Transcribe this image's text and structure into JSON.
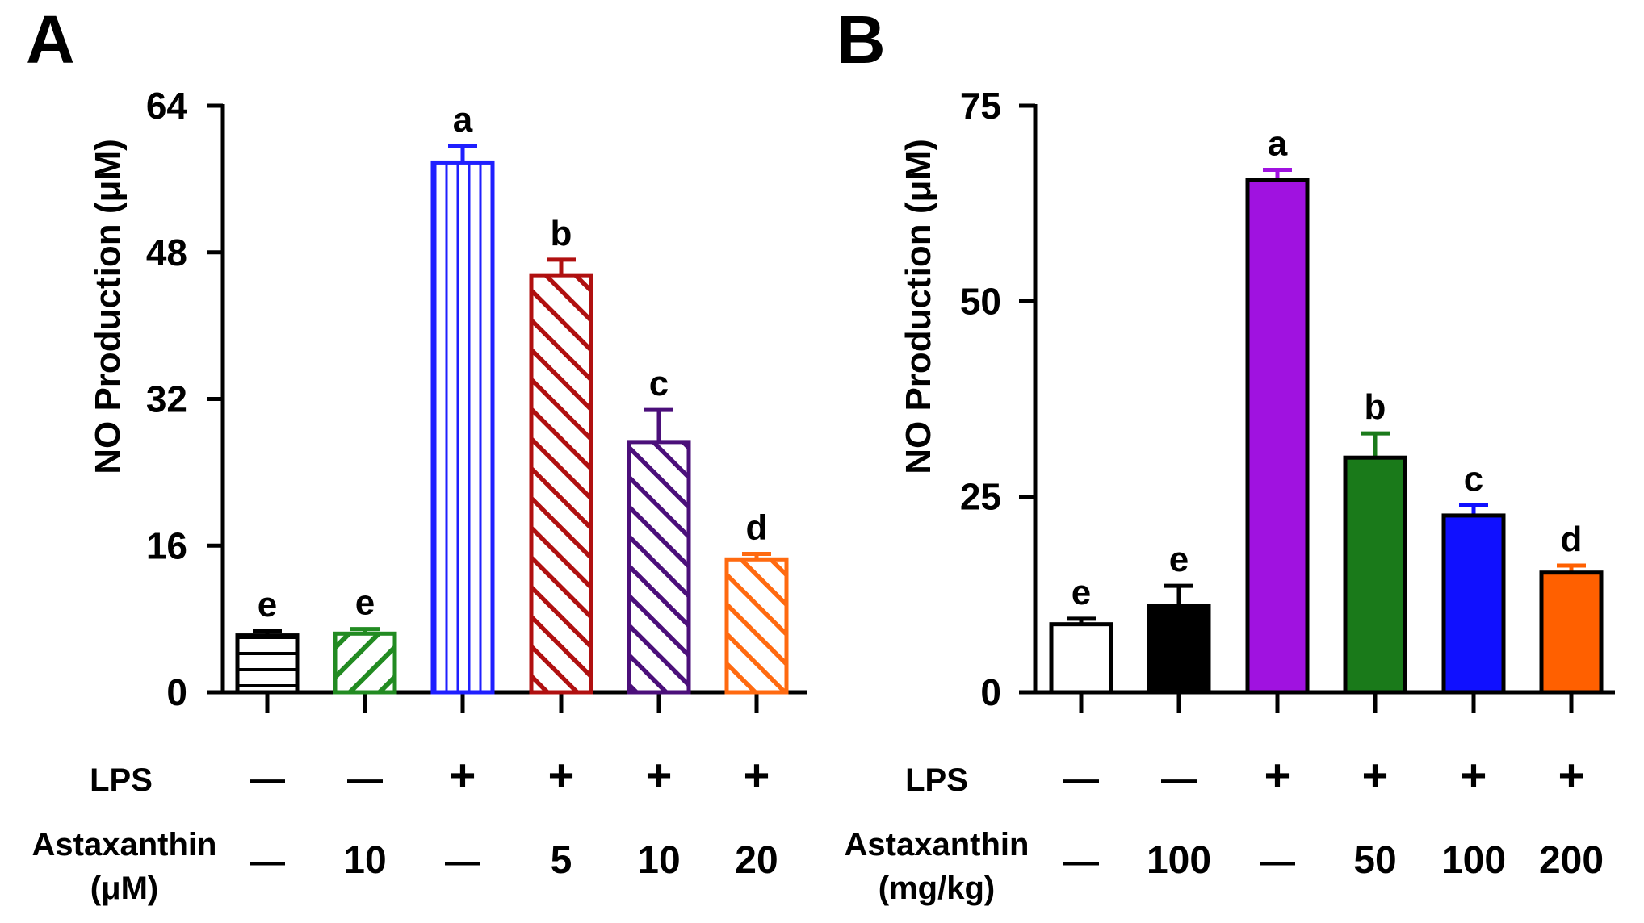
{
  "chart_data": [
    {
      "type": "bar",
      "panel_label": "A",
      "ylabel": "NO Production (μM)",
      "ylim": [
        0,
        64
      ],
      "yticks": [
        "0",
        "16",
        "32",
        "48",
        "64"
      ],
      "bars": [
        {
          "value": 6.2,
          "error": 0.5,
          "letter": "e",
          "lps": "—",
          "dose": "—",
          "color": "#000000",
          "pattern": "horizontal"
        },
        {
          "value": 6.4,
          "error": 0.5,
          "letter": "e",
          "lps": "—",
          "dose": "10",
          "color": "#228b22",
          "pattern": "diag-up"
        },
        {
          "value": 57.8,
          "error": 1.8,
          "letter": "a",
          "lps": "+",
          "dose": "—",
          "color": "#1f1fff",
          "pattern": "vertical"
        },
        {
          "value": 45.5,
          "error": 1.7,
          "letter": "b",
          "lps": "+",
          "dose": "5",
          "color": "#b01010",
          "pattern": "diag-down"
        },
        {
          "value": 27.3,
          "error": 3.5,
          "letter": "c",
          "lps": "+",
          "dose": "10",
          "color": "#4b0f7a",
          "pattern": "diag-down"
        },
        {
          "value": 14.5,
          "error": 0.6,
          "letter": "d",
          "lps": "+",
          "dose": "20",
          "color": "#ff6a10",
          "pattern": "diag-down"
        }
      ],
      "row_label_lps": "LPS",
      "row_label_dose_line1": "Astaxanthin",
      "row_label_dose_line2": "(μM)"
    },
    {
      "type": "bar",
      "panel_label": "B",
      "ylabel": "NO Production (μM)",
      "ylim": [
        0,
        75
      ],
      "yticks": [
        "0",
        "25",
        "50",
        "75"
      ],
      "bars": [
        {
          "value": 8.7,
          "error": 0.7,
          "letter": "e",
          "lps": "—",
          "dose": "—",
          "color": "#ffffff"
        },
        {
          "value": 11.0,
          "error": 2.6,
          "letter": "e",
          "lps": "—",
          "dose": "100",
          "color": "#000000"
        },
        {
          "value": 65.5,
          "error": 1.3,
          "letter": "a",
          "lps": "+",
          "dose": "—",
          "color": "#a012e0"
        },
        {
          "value": 30.0,
          "error": 3.1,
          "letter": "b",
          "lps": "+",
          "dose": "50",
          "color": "#1a7a1a"
        },
        {
          "value": 22.6,
          "error": 1.3,
          "letter": "c",
          "lps": "+",
          "dose": "100",
          "color": "#1010ff"
        },
        {
          "value": 15.3,
          "error": 0.9,
          "letter": "d",
          "lps": "+",
          "dose": "200",
          "color": "#ff6000"
        }
      ],
      "row_label_lps": "LPS",
      "row_label_dose_line1": "Astaxanthin",
      "row_label_dose_line2": "(mg/kg)"
    }
  ]
}
